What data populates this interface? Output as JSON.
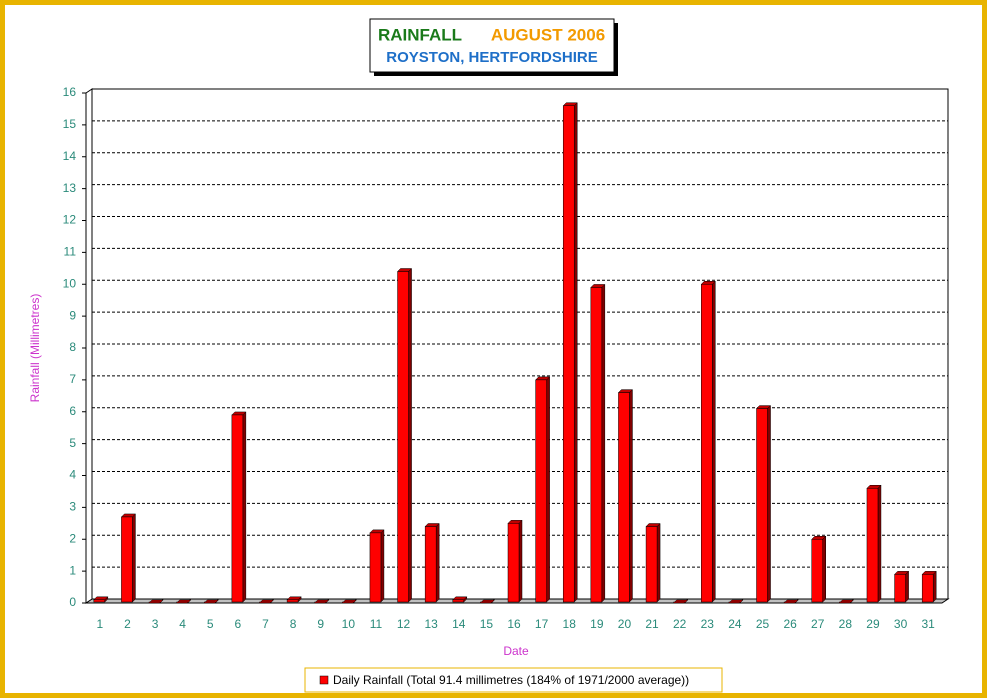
{
  "chart_data": {
    "type": "bar",
    "title": "RAINFALL",
    "title_period": "AUGUST 2006",
    "subtitle": "ROYSTON, HERTFORDSHIRE",
    "ylabel": "Rainfall  (Millimetres)",
    "xlabel": "Date",
    "categories": [
      "1",
      "2",
      "3",
      "4",
      "5",
      "6",
      "7",
      "8",
      "9",
      "10",
      "11",
      "12",
      "13",
      "14",
      "15",
      "16",
      "17",
      "18",
      "19",
      "20",
      "21",
      "22",
      "23",
      "24",
      "25",
      "26",
      "27",
      "28",
      "29",
      "30",
      "31"
    ],
    "series": [
      {
        "name": "Daily Rainfall (Total 91.4 millimetres (184% of 1971/2000 average))",
        "color": "#ff0000",
        "values": [
          0.1,
          2.7,
          0,
          0,
          0,
          5.9,
          0,
          0.1,
          0,
          0,
          2.2,
          10.4,
          2.4,
          0.1,
          0,
          2.5,
          7.0,
          15.6,
          9.9,
          6.6,
          2.4,
          0,
          10.0,
          0,
          6.1,
          0,
          2.0,
          0,
          3.6,
          0.9,
          0.9
        ]
      }
    ],
    "ylim": [
      0,
      16
    ],
    "yticks": [
      0,
      1,
      2,
      3,
      4,
      5,
      6,
      7,
      8,
      9,
      10,
      11,
      12,
      13,
      14,
      15,
      16
    ],
    "grid": true,
    "legend": "bottom"
  }
}
